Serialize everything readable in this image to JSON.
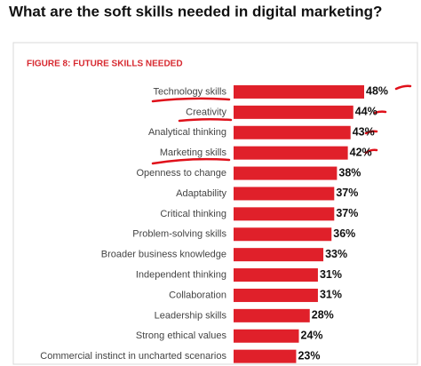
{
  "header": {
    "title": "What are the soft skills needed in digital marketing?"
  },
  "chart_data": {
    "type": "bar",
    "orientation": "horizontal",
    "title": "FIGURE 8: FUTURE SKILLS NEEDED",
    "categories": [
      "Technology skills",
      "Creativity",
      "Analytical thinking",
      "Marketing skills",
      "Openness to change",
      "Adaptability",
      "Critical thinking",
      "Problem-solving skills",
      "Broader business knowledge",
      "Independent thinking",
      "Collaboration",
      "Leadership skills",
      "Strong ethical values",
      "Commercial instinct in uncharted scenarios"
    ],
    "values": [
      48,
      44,
      43,
      42,
      38,
      37,
      37,
      36,
      33,
      31,
      31,
      28,
      24,
      23
    ],
    "value_labels": [
      "48%",
      "44%",
      "43%",
      "42%",
      "38%",
      "37%",
      "37%",
      "36%",
      "33%",
      "31%",
      "31%",
      "28%",
      "24%",
      "23%"
    ],
    "color": "#e0202a"
  }
}
